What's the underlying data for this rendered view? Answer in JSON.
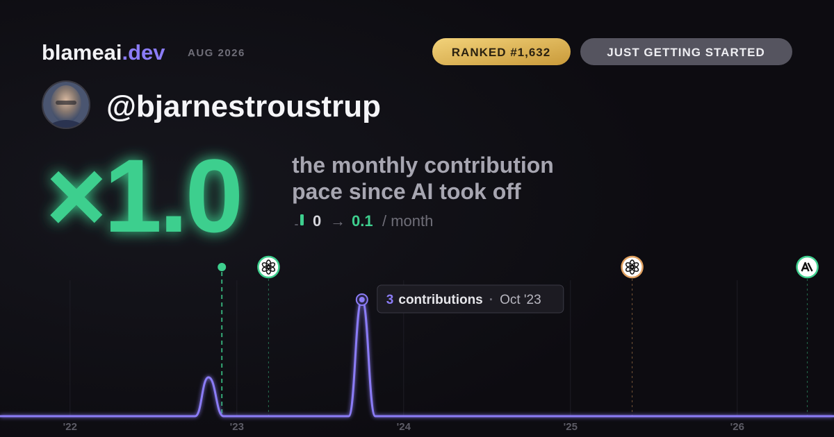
{
  "header": {
    "brand": "blameai",
    "brand_suffix": ".dev",
    "date": "AUG 2026",
    "rank_badge": "RANKED #1,632",
    "status_badge": "JUST GETTING STARTED"
  },
  "profile": {
    "handle": "@bjarnestroustrup"
  },
  "summary": {
    "multiplier": "×1.0",
    "description": [
      "the monthly contribution",
      "pace since AI took off"
    ],
    "pace_before": 0,
    "arrow": "→",
    "pace_after": 0.1,
    "pace_unit": "/ month"
  },
  "chart_data": {
    "type": "line",
    "x": [
      2021.58,
      2022.75,
      2022.83,
      2022.92,
      2023.67,
      2023.75,
      2023.83,
      2026.58
    ],
    "series": [
      {
        "name": "contributions",
        "color": "#8b7cf6",
        "values": [
          0,
          0,
          1,
          0,
          0,
          3,
          0,
          0
        ]
      }
    ],
    "xlim": [
      2021.58,
      2026.58
    ],
    "xticks": [
      {
        "value": 2022,
        "label": "'22"
      },
      {
        "value": 2023,
        "label": "'23"
      },
      {
        "value": 2024,
        "label": "'24"
      },
      {
        "value": 2025,
        "label": "'25"
      },
      {
        "value": 2026,
        "label": "'26"
      }
    ],
    "ylim": [
      0,
      3.5
    ],
    "grid": true,
    "highlight": 5,
    "tooltip": {
      "unit": "contributions",
      "separator": "·",
      "label": "Oct '23"
    },
    "events": [
      {
        "x": 2022.91,
        "marker": "dot",
        "color": "#3ecf8e"
      },
      {
        "x": 2023.19,
        "marker": "openai",
        "color": "#3ecf8e"
      },
      {
        "x": 2025.37,
        "marker": "openai",
        "color": "#e0a060"
      },
      {
        "x": 2026.42,
        "marker": "anthropic",
        "color": "#3ecf8e"
      }
    ]
  }
}
